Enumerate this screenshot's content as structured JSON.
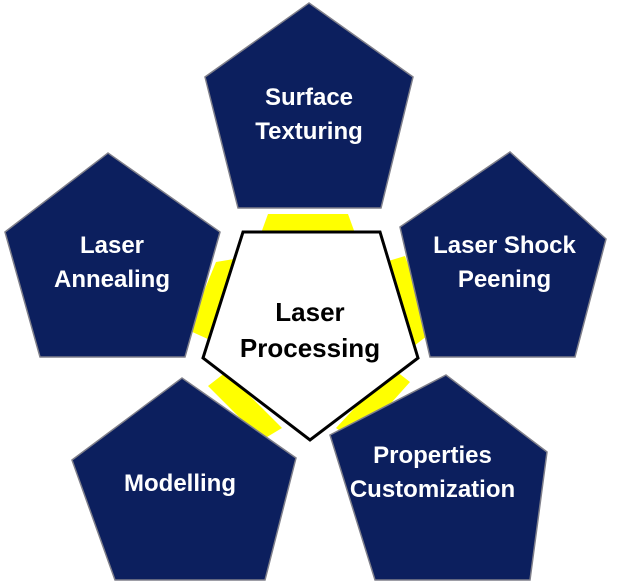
{
  "center": {
    "lines": [
      "Laser",
      "Processing"
    ]
  },
  "nodes": [
    {
      "id": "surface-texturing",
      "lines": [
        "Surface",
        "Texturing"
      ]
    },
    {
      "id": "laser-shock-peening",
      "lines": [
        "Laser Shock",
        "Peening"
      ]
    },
    {
      "id": "properties-customization",
      "lines": [
        "Properties",
        "Customization"
      ]
    },
    {
      "id": "modelling",
      "lines": [
        "Modelling"
      ]
    },
    {
      "id": "laser-annealing",
      "lines": [
        "Laser",
        "Annealing"
      ]
    }
  ],
  "colors": {
    "node_fill": "#0c1f5e",
    "node_stroke": "#7f7f8a",
    "connector": "#ffff00",
    "center_fill": "#ffffff",
    "center_stroke": "#000000"
  }
}
